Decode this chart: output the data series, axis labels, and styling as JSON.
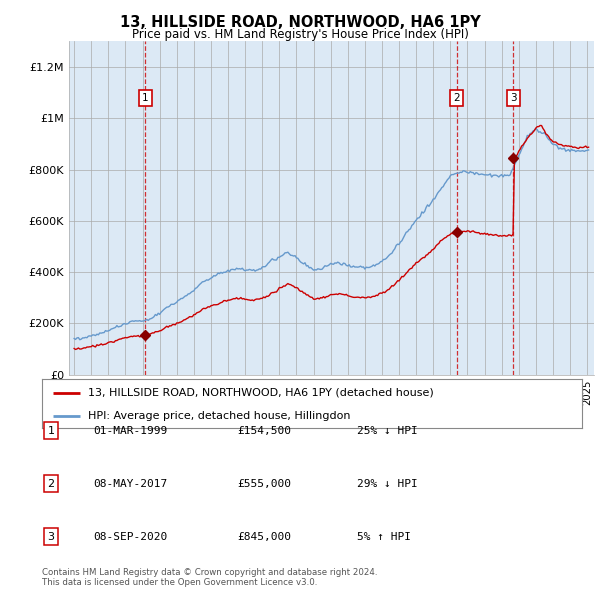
{
  "title": "13, HILLSIDE ROAD, NORTHWOOD, HA6 1PY",
  "subtitle": "Price paid vs. HM Land Registry's House Price Index (HPI)",
  "background_color": "#dce9f5",
  "line1_color": "#cc0000",
  "line2_color": "#6699cc",
  "ylim": [
    0,
    1300000
  ],
  "yticks": [
    0,
    200000,
    400000,
    600000,
    800000,
    1000000,
    1200000
  ],
  "ytick_labels": [
    "£0",
    "£200K",
    "£400K",
    "£600K",
    "£800K",
    "£1M",
    "£1.2M"
  ],
  "sale_year_floats": [
    1999.17,
    2017.36,
    2020.69
  ],
  "sale_prices": [
    154500,
    555000,
    845000
  ],
  "sale_labels": [
    "1",
    "2",
    "3"
  ],
  "legend_label1": "13, HILLSIDE ROAD, NORTHWOOD, HA6 1PY (detached house)",
  "legend_label2": "HPI: Average price, detached house, Hillingdon",
  "table_entries": [
    {
      "num": "1",
      "date": "01-MAR-1999",
      "price": "£154,500",
      "change": "25% ↓ HPI"
    },
    {
      "num": "2",
      "date": "08-MAY-2017",
      "price": "£555,000",
      "change": "29% ↓ HPI"
    },
    {
      "num": "3",
      "date": "08-SEP-2020",
      "price": "£845,000",
      "change": "5% ↑ HPI"
    }
  ],
  "footer": "Contains HM Land Registry data © Crown copyright and database right 2024.\nThis data is licensed under the Open Government Licence v3.0."
}
